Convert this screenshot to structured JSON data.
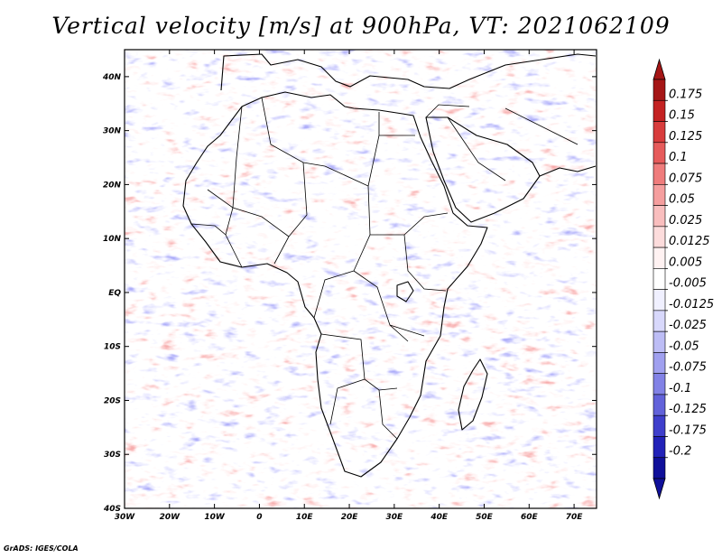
{
  "title": "Vertical velocity [m/s] at 900hPa, VT: 2021062109",
  "credit": "GrADS: IGES/COLA",
  "map": {
    "region": "Africa",
    "lat_labels": [
      "40N",
      "30N",
      "20N",
      "10N",
      "EQ",
      "10S",
      "20S",
      "30S",
      "40S"
    ],
    "lat_values": [
      40,
      30,
      20,
      10,
      0,
      -10,
      -20,
      -30,
      -40
    ],
    "lon_labels": [
      "30W",
      "20W",
      "10W",
      "0",
      "10E",
      "20E",
      "30E",
      "40E",
      "50E",
      "60E",
      "70E"
    ],
    "lon_values": [
      -30,
      -20,
      -10,
      0,
      10,
      20,
      30,
      40,
      50,
      60,
      70
    ],
    "lat_range": [
      -40,
      45
    ],
    "lon_range": [
      -30,
      75
    ]
  },
  "colorbar": {
    "labels": [
      "0.175",
      "0.15",
      "0.125",
      "0.1",
      "0.075",
      "0.05",
      "0.025",
      "0.0125",
      "0.005",
      "-0.005",
      "-0.0125",
      "-0.025",
      "-0.05",
      "-0.075",
      "-0.1",
      "-0.125",
      "-0.175",
      "-0.2"
    ],
    "colors": [
      "#a51616",
      "#c42222",
      "#d83c3c",
      "#e65b5b",
      "#ef7c7c",
      "#f59e9e",
      "#f9bebe",
      "#fcdcdc",
      "#fff2f2",
      "#ffffff",
      "#f0f0ff",
      "#d8d8fb",
      "#bdbdf5",
      "#a0a0ef",
      "#8282e6",
      "#6262da",
      "#3f3fcc",
      "#2222b8",
      "#10109a"
    ],
    "cap_top": "#a51616",
    "cap_bottom": "#10109a"
  }
}
